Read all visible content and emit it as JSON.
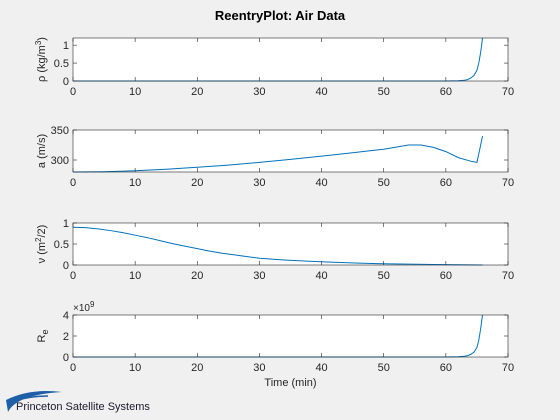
{
  "window": {
    "title": "ReentryPlot: Air Data"
  },
  "logo": {
    "text": "Princeton Satellite Systems",
    "color": "#1f5fa8"
  },
  "chart_data": [
    {
      "type": "line",
      "title": "ReentryPlot: Air Data",
      "xlabel": "",
      "ylabel": "ρ (kg/m³)",
      "ylabel_parts": {
        "main": "ρ (kg/m",
        "sup": "3",
        "tail": ")"
      },
      "xlim": [
        0,
        70
      ],
      "ylim": [
        0,
        1.2
      ],
      "xticks": [
        0,
        10,
        20,
        30,
        40,
        50,
        60,
        70
      ],
      "yticks": [
        0,
        0.5,
        1
      ],
      "yticklabels": [
        "0",
        "0.5",
        "1"
      ],
      "exponent_label": "",
      "grid": false,
      "series": [
        {
          "x": [
            0,
            10,
            20,
            30,
            40,
            50,
            58,
            60,
            61,
            62,
            63,
            63.5,
            64,
            64.5,
            65,
            65.3,
            65.6,
            65.9
          ],
          "y": [
            0,
            0,
            0,
            0,
            0,
            0,
            0,
            0.001,
            0.003,
            0.008,
            0.02,
            0.04,
            0.08,
            0.15,
            0.3,
            0.5,
            0.8,
            1.2
          ]
        }
      ]
    },
    {
      "type": "line",
      "xlabel": "",
      "ylabel": "a (m/s)",
      "xlim": [
        0,
        70
      ],
      "ylim": [
        280,
        350
      ],
      "xticks": [
        0,
        10,
        20,
        30,
        40,
        50,
        60,
        70
      ],
      "yticks": [
        300,
        350
      ],
      "yticklabels": [
        "300",
        "350"
      ],
      "exponent_label": "",
      "grid": false,
      "series": [
        {
          "x": [
            0,
            5,
            10,
            15,
            20,
            25,
            30,
            35,
            40,
            45,
            50,
            54,
            56,
            58,
            60,
            62,
            64,
            65,
            65.5,
            65.9
          ],
          "y": [
            280,
            280.5,
            282,
            284.5,
            288,
            291.5,
            296,
            301,
            306.5,
            312,
            318,
            325,
            325,
            321,
            314,
            304,
            298,
            296,
            320,
            340
          ]
        }
      ]
    },
    {
      "type": "line",
      "xlabel": "",
      "ylabel": "ν (m²/2)",
      "ylabel_parts": {
        "main": "ν (m",
        "sup": "2",
        "tail": "/2)"
      },
      "xlim": [
        0,
        70
      ],
      "ylim": [
        0,
        1
      ],
      "xticks": [
        0,
        10,
        20,
        30,
        40,
        50,
        60,
        70
      ],
      "yticks": [
        0,
        0.5,
        1
      ],
      "yticklabels": [
        "0",
        "0.5",
        "1"
      ],
      "exponent_label": "",
      "grid": false,
      "series": [
        {
          "x": [
            0,
            2,
            4,
            6,
            8,
            10,
            12,
            14,
            16,
            18,
            20,
            22,
            24,
            26,
            28,
            30,
            34,
            38,
            42,
            46,
            50,
            54,
            58,
            62,
            65.9
          ],
          "y": [
            0.9,
            0.89,
            0.86,
            0.82,
            0.77,
            0.71,
            0.65,
            0.58,
            0.51,
            0.45,
            0.39,
            0.33,
            0.28,
            0.24,
            0.2,
            0.16,
            0.12,
            0.09,
            0.065,
            0.045,
            0.03,
            0.02,
            0.012,
            0.005,
            0.0
          ]
        }
      ]
    },
    {
      "type": "line",
      "xlabel": "Time (min)",
      "ylabel": "Re",
      "ylabel_parts": {
        "main": "R",
        "sub": "e"
      },
      "xlim": [
        0,
        70
      ],
      "ylim": [
        0,
        4
      ],
      "xticks": [
        0,
        10,
        20,
        30,
        40,
        50,
        60,
        70
      ],
      "yticks": [
        0,
        2,
        4
      ],
      "yticklabels": [
        "0",
        "2",
        "4"
      ],
      "exponent_label": "×10",
      "exponent_sup": "9",
      "grid": false,
      "series": [
        {
          "x": [
            0,
            10,
            20,
            30,
            40,
            50,
            58,
            60,
            61,
            62,
            63,
            63.5,
            64,
            64.5,
            65,
            65.3,
            65.6,
            65.9
          ],
          "y": [
            0,
            0,
            0,
            0,
            0,
            0,
            0.001,
            0.004,
            0.01,
            0.03,
            0.07,
            0.13,
            0.25,
            0.45,
            0.9,
            1.6,
            2.7,
            4.0
          ]
        }
      ]
    }
  ],
  "colors": {
    "line": "#0072bd",
    "axis": "#262626",
    "plot_bg": "#ffffff",
    "fig_bg": "#f0f0f0"
  }
}
